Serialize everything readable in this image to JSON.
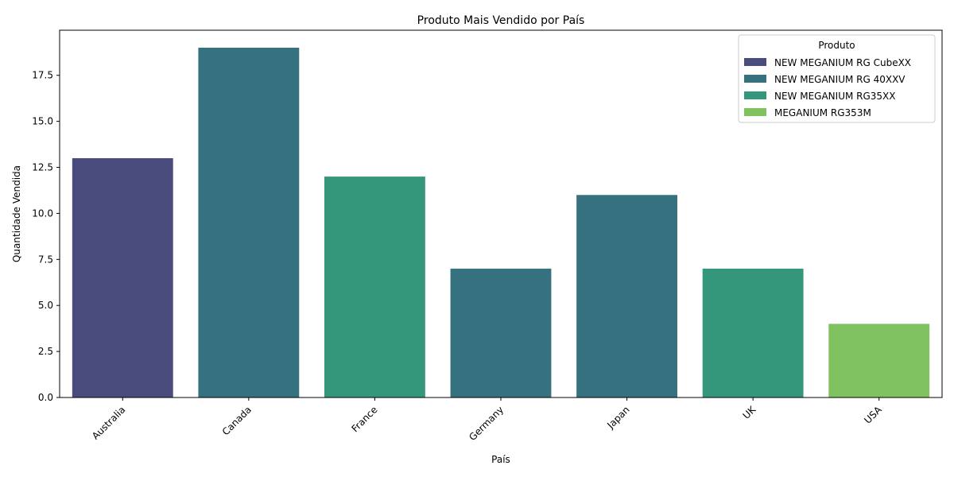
{
  "chart_data": {
    "type": "bar",
    "title": "Produto Mais Vendido por País",
    "xlabel": "País",
    "ylabel": "Quantidade Vendida",
    "ylim": [
      0,
      19.95
    ],
    "yticks": [
      0.0,
      2.5,
      5.0,
      7.5,
      10.0,
      12.5,
      15.0,
      17.5
    ],
    "ytick_labels": [
      "0.0",
      "2.5",
      "5.0",
      "7.5",
      "10.0",
      "12.5",
      "15.0",
      "17.5"
    ],
    "categories": [
      "Australia",
      "Canada",
      "France",
      "Germany",
      "Japan",
      "UK",
      "USA"
    ],
    "values": [
      13,
      19,
      12,
      7,
      11,
      7,
      4
    ],
    "bar_products": [
      "NEW MEGANIUM RG CubeXX",
      "NEW MEGANIUM RG 40XXV",
      "NEW MEGANIUM RG35XX",
      "NEW MEGANIUM RG 40XXV",
      "NEW MEGANIUM RG 40XXV",
      "NEW MEGANIUM RG35XX",
      "MEGANIUM RG353M"
    ],
    "legend": {
      "title": "Produto",
      "placement": "top-right",
      "entries": [
        {
          "name": "NEW MEGANIUM RG CubeXX",
          "color": "#4a4c7d"
        },
        {
          "name": "NEW MEGANIUM RG 40XXV",
          "color": "#36717f"
        },
        {
          "name": "NEW MEGANIUM RG35XX",
          "color": "#34977b"
        },
        {
          "name": "MEGANIUM RG353M",
          "color": "#80c160"
        }
      ]
    },
    "grid": false
  }
}
